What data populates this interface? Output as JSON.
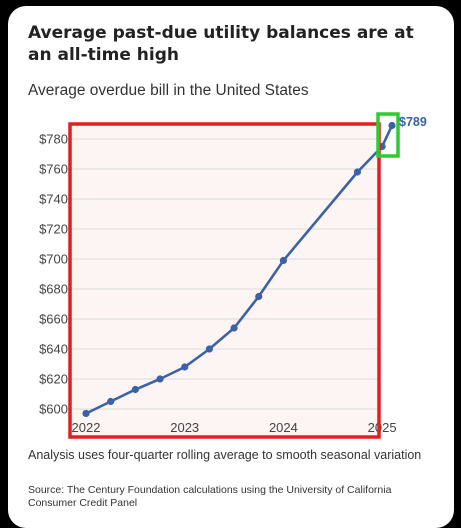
{
  "title": "Average past-due utility balances are at an all-time high",
  "subtitle": "Average overdue bill in the United States",
  "note": "Analysis uses four-quarter rolling average to smooth seasonal variation",
  "source": "Source: The Century Foundation calculations using the University of California Consumer Credit Panel",
  "colors": {
    "line": "#3a63a6",
    "highlight_box": "#e02020",
    "end_box": "#2ecc2e",
    "plot_fill": "#fdf4f4",
    "grid": "#dddddd"
  },
  "chart_data": {
    "type": "line",
    "title": "Average past-due utility balances are at an all-time high",
    "subtitle": "Average overdue bill in the United States",
    "xlabel": "",
    "ylabel": "",
    "x_ticks": [
      "2022",
      "2023",
      "2024",
      "2025"
    ],
    "y_ticks": [
      "$600",
      "$620",
      "$640",
      "$660",
      "$680",
      "$700",
      "$720",
      "$740",
      "$760",
      "$780"
    ],
    "xlim": [
      2022,
      2025.1
    ],
    "ylim": [
      594,
      790
    ],
    "grid": true,
    "series": [
      {
        "x": [
          2022.0,
          2022.25,
          2022.5,
          2022.75,
          2023.0,
          2023.25,
          2023.5,
          2023.75,
          2024.0,
          2024.75,
          2025.0,
          2025.1
        ],
        "y": [
          597,
          605,
          613,
          620,
          628,
          640,
          654,
          675,
          699,
          758,
          775,
          789
        ]
      }
    ],
    "end_label": "$789"
  }
}
